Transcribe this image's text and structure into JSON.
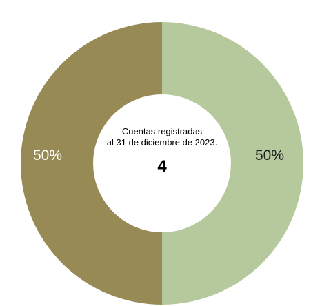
{
  "chart_data": {
    "type": "pie",
    "donut": true,
    "center_text": {
      "line1": "Cuentas registradas",
      "line2": "al 31 de diciembre de 2023.",
      "value": "4"
    },
    "slices": [
      {
        "value": 50,
        "label": "50%",
        "color": "#b5c99d"
      },
      {
        "value": 50,
        "label": "50%",
        "color": "#978a55"
      }
    ],
    "legend": "none"
  }
}
